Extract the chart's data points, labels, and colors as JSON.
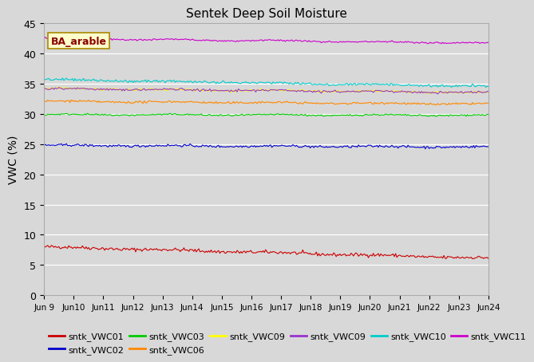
{
  "title": "Sentek Deep Soil Moisture",
  "ylabel": "VWC (%)",
  "annotation": "BA_arable",
  "ylim": [
    0,
    45
  ],
  "yticks": [
    0,
    5,
    10,
    15,
    20,
    25,
    30,
    35,
    40,
    45
  ],
  "background_color": "#d8d8d8",
  "series": [
    {
      "label": "sntk_VWC01",
      "color": "#cc0000",
      "base": 8.0,
      "noise": 0.15,
      "trend": -0.125
    },
    {
      "label": "sntk_VWC02",
      "color": "#0000cc",
      "base": 24.8,
      "noise": 0.1,
      "trend": -0.018
    },
    {
      "label": "sntk_VWC03",
      "color": "#00cc00",
      "base": 29.9,
      "noise": 0.07,
      "trend": -0.008
    },
    {
      "label": "sntk_VWC06",
      "color": "#ff8800",
      "base": 32.1,
      "noise": 0.09,
      "trend": -0.03
    },
    {
      "label": "sntk_VWC09",
      "color": "#ffff00",
      "base": 34.2,
      "noise": 0.09,
      "trend": -0.043
    },
    {
      "label": "sntk_VWC09",
      "color": "#9933cc",
      "base": 34.2,
      "noise": 0.09,
      "trend": -0.043
    },
    {
      "label": "sntk_VWC10",
      "color": "#00cccc",
      "base": 35.7,
      "noise": 0.11,
      "trend": -0.075
    },
    {
      "label": "sntk_VWC11",
      "color": "#cc00cc",
      "base": 42.5,
      "noise": 0.07,
      "trend": -0.05
    }
  ],
  "x_tick_labels": [
    "Jun 9",
    "Jun 10",
    "Jun 11",
    "Jun 12",
    "Jun 13",
    "Jun 14",
    "Jun 15",
    "Jun 16",
    "Jun 17",
    "Jun 18",
    "Jun 19",
    "Jun 20",
    "Jun 21",
    "Jun 22",
    "Jun 23",
    "Jun 24"
  ],
  "legend_row1": [
    {
      "label": "sntk_VWC01",
      "color": "#cc0000"
    },
    {
      "label": "sntk_VWC02",
      "color": "#0000cc"
    },
    {
      "label": "sntk_VWC03",
      "color": "#00cc00"
    },
    {
      "label": "sntk_VWC06",
      "color": "#ff8800"
    },
    {
      "label": "sntk_VWC09",
      "color": "#ffff00"
    },
    {
      "label": "sntk_VWC09",
      "color": "#9933cc"
    }
  ],
  "legend_row2": [
    {
      "label": "sntk_VWC10",
      "color": "#00cccc"
    },
    {
      "label": "sntk_VWC11",
      "color": "#cc00cc"
    }
  ]
}
